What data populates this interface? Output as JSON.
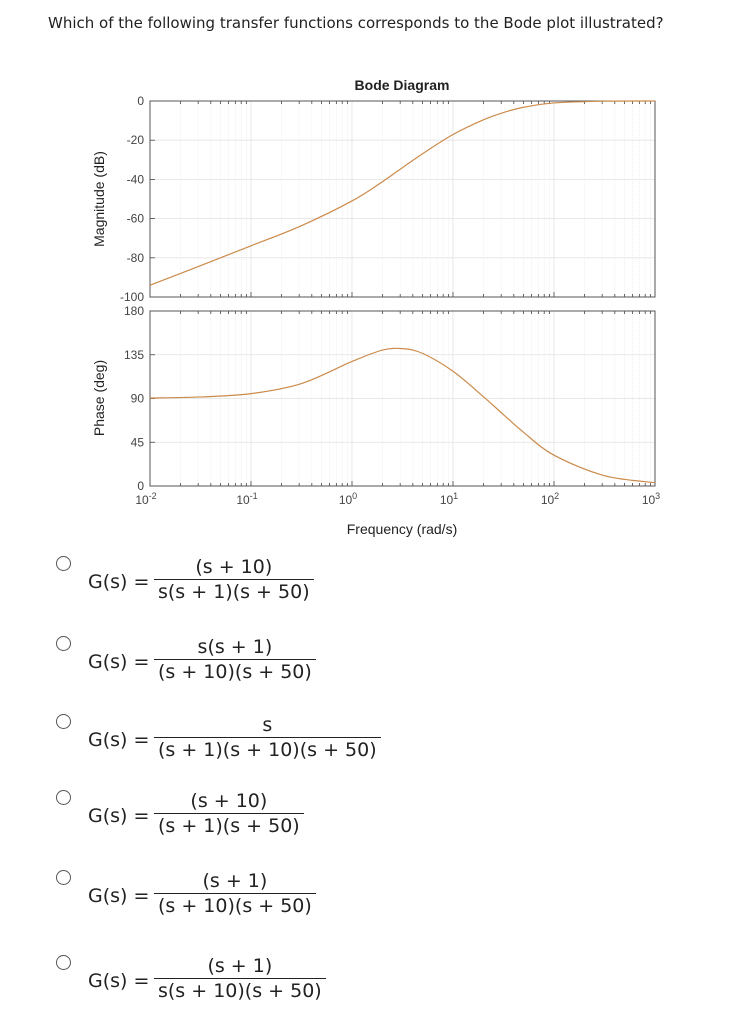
{
  "question": "Which of the following transfer functions corresponds to the Bode plot illustrated?",
  "options": [
    {
      "lhs": "G(s) =",
      "numerator": "(s + 10)",
      "denominator": "s(s + 1)(s + 50)"
    },
    {
      "lhs": "G(s) =",
      "numerator": "s(s + 1)",
      "denominator": "(s + 10)(s + 50)"
    },
    {
      "lhs": "G(s) =",
      "numerator": "s",
      "denominator": "(s + 1)(s + 10)(s + 50)"
    },
    {
      "lhs": "G(s) =",
      "numerator": "(s + 10)",
      "denominator": "(s + 1)(s + 50)"
    },
    {
      "lhs": "G(s) =",
      "numerator": "(s + 1)",
      "denominator": "(s + 10)(s + 50)"
    },
    {
      "lhs": "G(s) =",
      "numerator": "(s + 1)",
      "denominator": "s(s + 10)(s + 50)"
    }
  ],
  "chart_data": {
    "type": "line",
    "title": "Bode Diagram",
    "xlabel": "Frequency (rad/s)",
    "xscale": "log",
    "xlim": [
      0.01,
      1000
    ],
    "x_ticks": [
      {
        "base": "10",
        "exp": "-2"
      },
      {
        "base": "10",
        "exp": "-1"
      },
      {
        "base": "10",
        "exp": "0"
      },
      {
        "base": "10",
        "exp": "1"
      },
      {
        "base": "10",
        "exp": "2"
      },
      {
        "base": "10",
        "exp": "3"
      }
    ],
    "grid": true,
    "line_color": "#cc8a4a",
    "x": [
      0.01,
      0.0316,
      0.1,
      0.316,
      1,
      2,
      3.16,
      5,
      10,
      20,
      31.6,
      50,
      100,
      316,
      1000
    ],
    "panels": [
      {
        "ylabel": "Magnitude (dB)",
        "ylim": [
          -100,
          0
        ],
        "y_ticks": [
          "0",
          "-20",
          "-40",
          "-60",
          "-80",
          "-100"
        ],
        "y_tick_values": [
          0,
          -20,
          -40,
          -60,
          -80,
          -100
        ],
        "values": [
          -94.0,
          -84.0,
          -73.9,
          -63.6,
          -51.0,
          -41.2,
          -34.0,
          -26.9,
          -17.1,
          -9.6,
          -5.9,
          -3.2,
          -1.0,
          -0.1,
          0.0
        ]
      },
      {
        "ylabel": "Phase (deg)",
        "ylim": [
          0,
          180
        ],
        "y_ticks": [
          "180",
          "135",
          "90",
          "45",
          "0"
        ],
        "y_tick_values": [
          180,
          135,
          90,
          45,
          0
        ],
        "values": [
          90.5,
          91.6,
          95.0,
          105.4,
          128.1,
          139.8,
          141.3,
          136.4,
          118.0,
          91.9,
          73.4,
          55.2,
          31.7,
          10.6,
          3.4
        ]
      }
    ]
  }
}
